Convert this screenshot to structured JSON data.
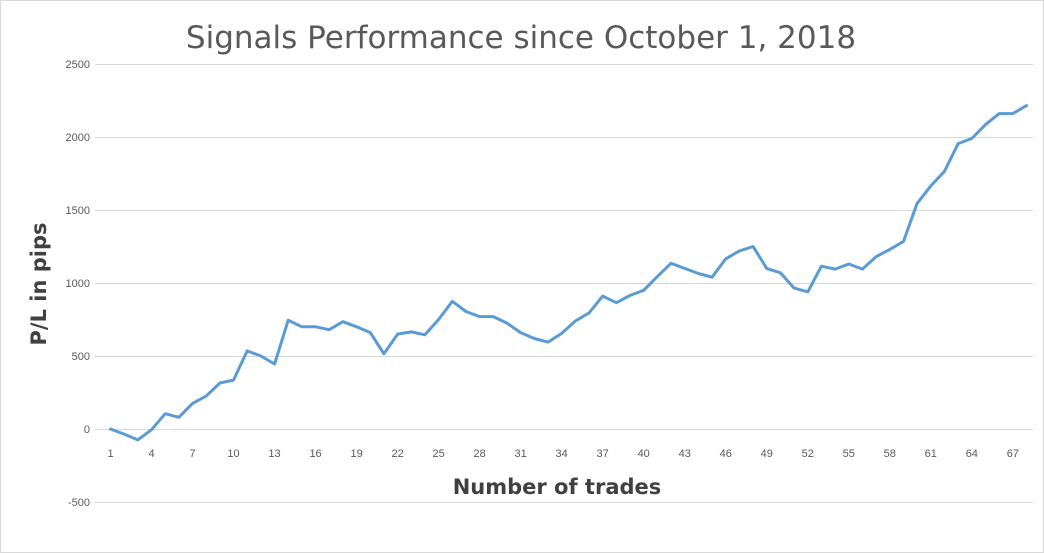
{
  "chart_data": {
    "type": "line",
    "title": "Signals Performance since October 1, 2018",
    "xlabel": "Number of trades",
    "ylabel": "P/L in pips",
    "ylim": [
      -500,
      2500
    ],
    "yticks": [
      -500,
      0,
      500,
      1000,
      1500,
      2000,
      2500
    ],
    "xlim": [
      1,
      68
    ],
    "xtick_labels": [
      "1",
      "4",
      "7",
      "10",
      "13",
      "16",
      "19",
      "22",
      "25",
      "28",
      "31",
      "34",
      "37",
      "40",
      "43",
      "46",
      "49",
      "52",
      "55",
      "58",
      "61",
      "64",
      "67"
    ],
    "grid": true,
    "legend": "none",
    "series_color": "#5b9bd5",
    "series": [
      {
        "x": [
          1,
          2,
          3,
          4,
          5,
          6,
          7,
          8,
          9,
          10,
          11,
          12,
          13,
          14,
          15,
          16,
          17,
          18,
          19,
          20,
          21,
          22,
          23,
          24,
          25,
          26,
          27,
          28,
          29,
          30,
          31,
          32,
          33,
          34,
          35,
          36,
          37,
          38,
          39,
          40,
          41,
          42,
          43,
          44,
          45,
          46,
          47,
          48,
          49,
          50,
          51,
          52,
          53,
          54,
          55,
          56,
          57,
          58,
          59,
          60,
          61,
          62,
          63,
          64,
          65,
          66,
          67,
          68
        ],
        "values": [
          0,
          -35,
          -75,
          -5,
          105,
          80,
          175,
          225,
          315,
          335,
          535,
          500,
          445,
          745,
          700,
          700,
          680,
          735,
          700,
          660,
          515,
          650,
          665,
          645,
          750,
          875,
          805,
          770,
          770,
          725,
          660,
          620,
          595,
          655,
          740,
          795,
          910,
          865,
          915,
          950,
          1045,
          1135,
          1100,
          1065,
          1040,
          1165,
          1220,
          1250,
          1100,
          1070,
          965,
          940,
          1115,
          1095,
          1130,
          1095,
          1180,
          1230,
          1285,
          1545,
          1665,
          1765,
          1955,
          1990,
          2085,
          2160,
          2160,
          2215
        ]
      }
    ]
  }
}
